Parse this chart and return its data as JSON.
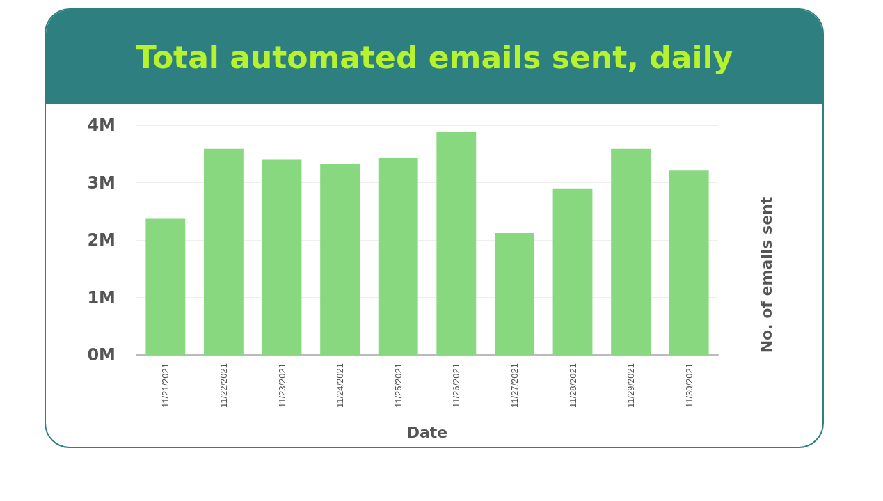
{
  "chart_data": {
    "type": "bar",
    "title": "Total automated emails sent, daily",
    "xlabel": "Date",
    "ylabel": "No. of emails sent",
    "categories": [
      "11/21/2021",
      "11/22/2021",
      "11/23/2021",
      "11/24/2021",
      "11/25/2021",
      "11/26/2021",
      "11/27/2021",
      "11/28/2021",
      "11/29/2021",
      "11/30/2021"
    ],
    "values": [
      2370000,
      3590000,
      3400000,
      3320000,
      3430000,
      3880000,
      2120000,
      2900000,
      3590000,
      3210000
    ],
    "color": "#88d880",
    "ylim": [
      0,
      4000000
    ],
    "yticks": [
      {
        "value": 0,
        "label": "0M"
      },
      {
        "value": 1000000,
        "label": "1M"
      },
      {
        "value": 2000000,
        "label": "2M"
      },
      {
        "value": 3000000,
        "label": "3M"
      },
      {
        "value": 4000000,
        "label": "4M"
      }
    ],
    "grid": "y"
  }
}
